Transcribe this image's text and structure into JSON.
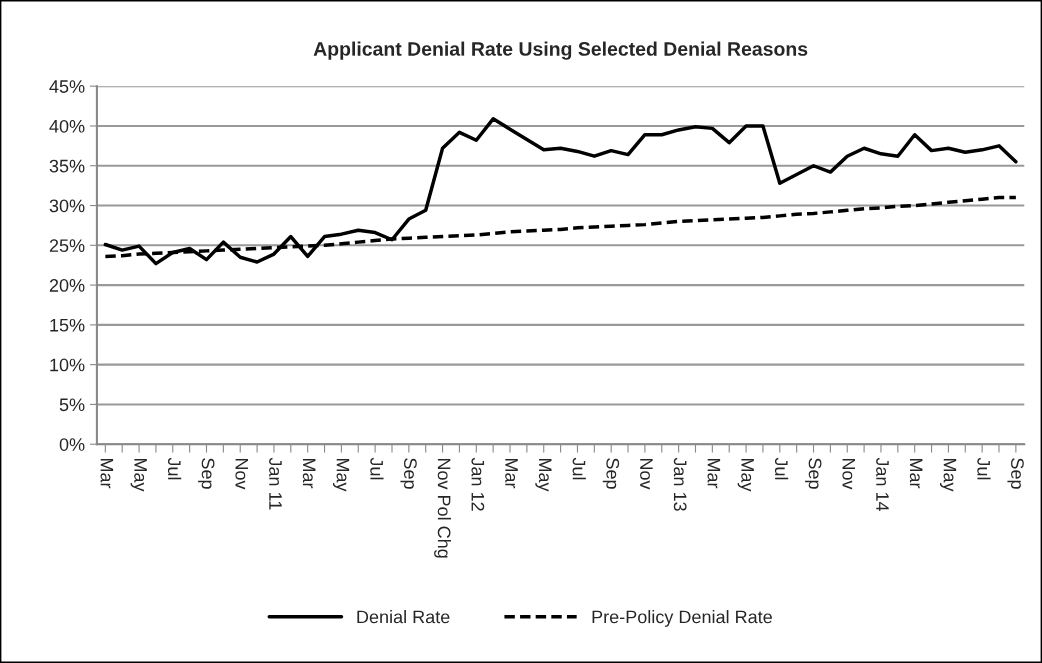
{
  "chart_data": {
    "type": "line",
    "title": "Applicant Denial Rate Using Selected Denial Reasons",
    "categories": [
      "Mar",
      null,
      "May",
      null,
      "Jul",
      null,
      "Sep",
      null,
      "Nov",
      null,
      "Jan 11",
      null,
      "Mar",
      null,
      "May",
      null,
      "Jul",
      null,
      "Sep",
      null,
      "Nov Pol Chg",
      null,
      "Jan 12",
      null,
      "Mar",
      null,
      "May",
      null,
      "Jul",
      null,
      "Sep",
      null,
      "Nov",
      null,
      "Jan 13",
      null,
      "Mar",
      null,
      "May",
      null,
      "Jul",
      null,
      "Sep",
      null,
      "Nov",
      null,
      "Jan 14",
      null,
      "Mar",
      null,
      "May",
      null,
      "Jul",
      null,
      "Sep"
    ],
    "series": [
      {
        "name": "Denial Rate",
        "color": "#000000",
        "line_style": "solid",
        "values": [
          25.1,
          24.4,
          24.9,
          22.7,
          24.1,
          24.6,
          23.2,
          25.4,
          23.5,
          22.9,
          23.9,
          26.1,
          23.6,
          26.1,
          26.4,
          26.9,
          26.6,
          25.7,
          28.3,
          29.4,
          37.2,
          39.2,
          38.2,
          40.9,
          39.6,
          38.3,
          37.0,
          37.2,
          36.8,
          36.2,
          36.9,
          36.4,
          38.9,
          38.9,
          39.5,
          39.9,
          39.7,
          37.9,
          40.0,
          40.0,
          32.8,
          33.9,
          35.0,
          34.2,
          36.2,
          37.2,
          36.5,
          36.2,
          38.9,
          36.9,
          37.2,
          36.7,
          37.0,
          37.5,
          35.5
        ]
      },
      {
        "name": "Pre-Policy Denial Rate",
        "color": "#000000",
        "line_style": "dashed",
        "values": [
          23.6,
          23.7,
          23.9,
          24.0,
          24.1,
          24.2,
          24.3,
          24.4,
          24.5,
          24.6,
          24.7,
          24.8,
          24.9,
          25.0,
          25.2,
          25.4,
          25.6,
          25.8,
          25.9,
          26.0,
          26.1,
          26.2,
          26.3,
          26.5,
          26.7,
          26.8,
          26.9,
          27.0,
          27.2,
          27.3,
          27.4,
          27.5,
          27.6,
          27.8,
          28.0,
          28.1,
          28.2,
          28.3,
          28.4,
          28.5,
          28.7,
          28.9,
          29.0,
          29.2,
          29.4,
          29.6,
          29.7,
          29.9,
          30.0,
          30.2,
          30.4,
          30.6,
          30.8,
          31.0,
          31.0
        ]
      }
    ],
    "ylim": [
      0,
      45
    ],
    "yticks": [
      {
        "value": 0,
        "label": "0%"
      },
      {
        "value": 5,
        "label": "5%"
      },
      {
        "value": 10,
        "label": "10%"
      },
      {
        "value": 15,
        "label": "15%"
      },
      {
        "value": 20,
        "label": "20%"
      },
      {
        "value": 25,
        "label": "25%"
      },
      {
        "value": 30,
        "label": "30%"
      },
      {
        "value": 35,
        "label": "35%"
      },
      {
        "value": 40,
        "label": "40%"
      },
      {
        "value": 45,
        "label": "45%"
      }
    ],
    "grid": "y",
    "legend": "bottom",
    "marker": "none"
  }
}
